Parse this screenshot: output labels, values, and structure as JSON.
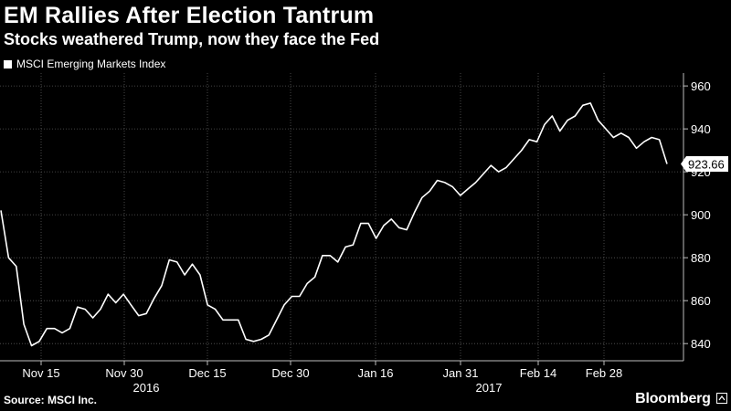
{
  "header": {
    "title": "EM Rallies After Election Tantrum",
    "subtitle": "Stocks weathered Trump, now they face the Fed"
  },
  "legend": {
    "label": "MSCI Emerging Markets Index"
  },
  "footer": {
    "source": "Source: MSCI Inc.",
    "brand": "Bloomberg",
    "brand_icon": "bloomberg-square-icon"
  },
  "colors": {
    "background": "#000000",
    "line": "#ffffff",
    "grid": "#5a5a5a"
  },
  "chart_data": {
    "type": "line",
    "title": "EM Rallies After Election Tantrum",
    "subtitle": "Stocks weathered Trump, now they face the Fed",
    "xlabel": "",
    "ylabel": "",
    "ylim": [
      832,
      966
    ],
    "y_ticks": [
      840,
      860,
      880,
      900,
      920,
      940,
      960
    ],
    "x_tick_labels": [
      "Nov 15",
      "Nov 30",
      "Dec 15",
      "Dec 30",
      "Jan 16",
      "Jan 31",
      "Feb 14",
      "Feb 28"
    ],
    "year_labels": [
      "2016",
      "2017"
    ],
    "last_value_label": "923.66",
    "grid": true,
    "legend_position": "top-left",
    "series": [
      {
        "name": "MSCI Emerging Markets Index",
        "values": [
          902,
          880,
          876,
          849,
          839,
          841,
          847,
          847,
          845,
          847,
          857,
          856,
          852,
          856,
          863,
          859,
          863,
          858,
          853,
          854,
          861,
          867,
          879,
          878,
          872,
          877,
          872,
          858,
          856,
          851,
          851,
          851,
          842,
          841,
          842,
          844,
          851,
          858,
          862,
          862,
          868,
          871,
          881,
          881,
          878,
          885,
          886,
          896,
          896,
          889,
          895,
          898,
          894,
          893,
          901,
          908,
          911,
          916,
          915,
          913,
          909,
          912,
          915,
          919,
          923,
          920,
          922,
          926,
          930,
          935,
          934,
          942,
          946,
          939,
          944,
          946,
          951,
          952,
          944,
          940,
          936,
          938,
          936,
          931,
          934,
          936,
          935,
          923.66
        ]
      }
    ]
  }
}
